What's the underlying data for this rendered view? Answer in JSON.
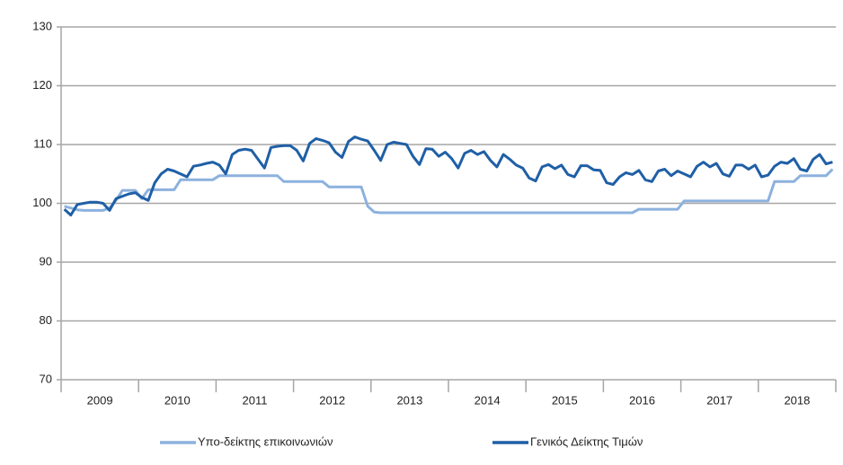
{
  "chart_data": {
    "type": "line",
    "categories": [
      "2009",
      null,
      null,
      null,
      null,
      null,
      null,
      null,
      null,
      null,
      null,
      null,
      "2010",
      null,
      null,
      null,
      null,
      null,
      null,
      null,
      null,
      null,
      null,
      null,
      "2011",
      null,
      null,
      null,
      null,
      null,
      null,
      null,
      null,
      null,
      null,
      null,
      "2012",
      null,
      null,
      null,
      null,
      null,
      null,
      null,
      null,
      null,
      null,
      null,
      "2013",
      null,
      null,
      null,
      null,
      null,
      null,
      null,
      null,
      null,
      null,
      null,
      "2014",
      null,
      null,
      null,
      null,
      null,
      null,
      null,
      null,
      null,
      null,
      null,
      "2015",
      null,
      null,
      null,
      null,
      null,
      null,
      null,
      null,
      null,
      null,
      null,
      "2016",
      null,
      null,
      null,
      null,
      null,
      null,
      null,
      null,
      null,
      null,
      null,
      "2017",
      null,
      null,
      null,
      null,
      null,
      null,
      null,
      null,
      null,
      null,
      null,
      "2018",
      null,
      null,
      null,
      null,
      null,
      null,
      null,
      null,
      null,
      null,
      null
    ],
    "series": [
      {
        "name": "Υπο-δείκτης επικοινωνιών",
        "color": "#8cb1de",
        "values": [
          99.5,
          99.2,
          98.9,
          98.8,
          98.8,
          98.8,
          98.8,
          99.2,
          100.5,
          102.2,
          102.2,
          102.2,
          100.8,
          102.3,
          102.3,
          102.3,
          102.3,
          102.3,
          104,
          104,
          104,
          104,
          104,
          104,
          104.7,
          104.7,
          104.7,
          104.7,
          104.7,
          104.7,
          104.7,
          104.7,
          104.7,
          104.7,
          103.7,
          103.7,
          103.7,
          103.7,
          103.7,
          103.7,
          103.7,
          102.8,
          102.8,
          102.8,
          102.8,
          102.8,
          102.8,
          99.5,
          98.5,
          98.4,
          98.4,
          98.4,
          98.4,
          98.4,
          98.4,
          98.4,
          98.4,
          98.4,
          98.4,
          98.4,
          98.4,
          98.4,
          98.4,
          98.4,
          98.4,
          98.4,
          98.4,
          98.4,
          98.4,
          98.4,
          98.4,
          98.4,
          98.4,
          98.4,
          98.4,
          98.4,
          98.4,
          98.4,
          98.4,
          98.4,
          98.4,
          98.4,
          98.4,
          98.4,
          98.4,
          98.4,
          98.4,
          98.4,
          98.4,
          99,
          99,
          99,
          99,
          99,
          99,
          99,
          100.4,
          100.4,
          100.4,
          100.4,
          100.4,
          100.4,
          100.4,
          100.4,
          100.4,
          100.4,
          100.4,
          100.4,
          100.4,
          100.4,
          103.7,
          103.7,
          103.7,
          103.7,
          104.7,
          104.7,
          104.7,
          104.7,
          104.7,
          105.8
        ]
      },
      {
        "name": "Γενικός Δείκτης Τιμών",
        "color": "#1f5fa6",
        "values": [
          99,
          98,
          99.8,
          100,
          100.2,
          100.2,
          100,
          98.8,
          100.8,
          101.2,
          101.6,
          101.8,
          101,
          100.5,
          103.5,
          105,
          105.8,
          105.5,
          105,
          104.5,
          106.3,
          106.5,
          106.8,
          107,
          106.5,
          105,
          108.3,
          109,
          109.2,
          109,
          107.5,
          106,
          109.5,
          109.7,
          109.8,
          109.8,
          109,
          107.2,
          110.2,
          111,
          110.7,
          110.3,
          108.7,
          107.8,
          110.5,
          111.3,
          110.9,
          110.6,
          109,
          107.3,
          110,
          110.4,
          110.2,
          110,
          108,
          106.6,
          109.3,
          109.2,
          108,
          108.7,
          107.6,
          106,
          108.5,
          109,
          108.3,
          108.8,
          107.3,
          106.2,
          108.3,
          107.5,
          106.5,
          106,
          104.3,
          103.8,
          106.2,
          106.6,
          105.9,
          106.5,
          104.9,
          104.5,
          106.4,
          106.4,
          105.7,
          105.6,
          103.5,
          103.2,
          104.5,
          105.2,
          104.9,
          105.6,
          104,
          103.7,
          105.5,
          105.8,
          104.7,
          105.5,
          105,
          104.5,
          106.3,
          107,
          106.2,
          106.8,
          105,
          104.6,
          106.5,
          106.5,
          105.8,
          106.5,
          104.5,
          104.8,
          106.3,
          107,
          106.8,
          107.6,
          105.8,
          105.5,
          107.5,
          108.3,
          106.7,
          107
        ]
      }
    ],
    "ylim": [
      70,
      130
    ],
    "yticks": [
      70,
      80,
      90,
      100,
      110,
      120,
      130
    ],
    "grid": true,
    "legend": "bottom"
  }
}
